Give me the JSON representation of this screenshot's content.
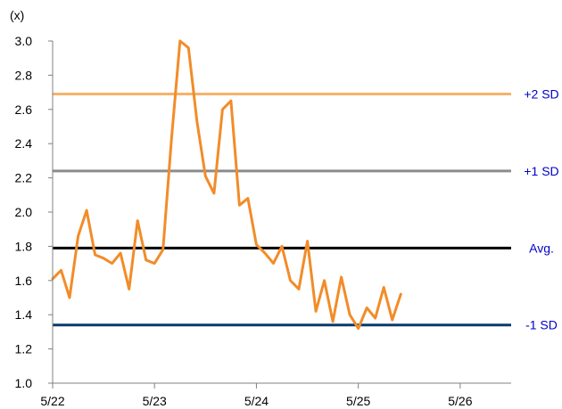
{
  "chart_data": {
    "type": "line",
    "y_unit_label": "(x)",
    "ylim": [
      1.0,
      3.0
    ],
    "y_ticks": [
      "1.0",
      "1.2",
      "1.4",
      "1.6",
      "1.8",
      "2.0",
      "2.2",
      "2.4",
      "2.6",
      "2.8",
      "3.0"
    ],
    "x_ticks": [
      {
        "label": "5/22",
        "date": "2022-05"
      },
      {
        "label": "5/23",
        "date": "2023-05"
      },
      {
        "label": "5/24",
        "date": "2024-05"
      },
      {
        "label": "5/25",
        "date": "2025-05"
      },
      {
        "label": "5/26",
        "date": "2026-05"
      }
    ],
    "xlim": [
      "2022-05",
      "2026-11"
    ],
    "grid": false,
    "series": [
      {
        "color": "#F28C28",
        "x": [
          "2022-05",
          "2022-06",
          "2022-07",
          "2022-08",
          "2022-09",
          "2022-10",
          "2022-11",
          "2022-12",
          "2023-01",
          "2023-02",
          "2023-03",
          "2023-04",
          "2023-05",
          "2023-06",
          "2023-07",
          "2023-08",
          "2023-09",
          "2023-10",
          "2023-11",
          "2023-12",
          "2024-01",
          "2024-02",
          "2024-03",
          "2024-04",
          "2024-05",
          "2024-06",
          "2024-07",
          "2024-08",
          "2024-09",
          "2024-10",
          "2024-11",
          "2024-12",
          "2025-01",
          "2025-02",
          "2025-03",
          "2025-04",
          "2025-05",
          "2025-06",
          "2025-07",
          "2025-08",
          "2025-09",
          "2025-10"
        ],
        "y": [
          1.61,
          1.66,
          1.5,
          1.86,
          2.01,
          1.75,
          1.73,
          1.7,
          1.76,
          1.55,
          1.95,
          1.72,
          1.7,
          1.78,
          2.43,
          3.0,
          2.96,
          2.53,
          2.21,
          2.11,
          2.6,
          2.65,
          2.04,
          2.08,
          1.81,
          1.76,
          1.7,
          1.8,
          1.6,
          1.55,
          1.83,
          1.42,
          1.6,
          1.36,
          1.62,
          1.4,
          1.32,
          1.44,
          1.38,
          1.56,
          1.37,
          1.52
        ]
      }
    ],
    "reference_lines": [
      {
        "label": "+2 SD",
        "value": 2.69,
        "color": "#F7B26B"
      },
      {
        "label": "+1 SD",
        "value": 2.24,
        "color": "#8C8C8C"
      },
      {
        "label": "Avg.",
        "value": 1.79,
        "color": "#000000"
      },
      {
        "label": "-1 SD",
        "value": 1.34,
        "color": "#0B3A6B"
      }
    ],
    "label_color": "#0000CC"
  }
}
